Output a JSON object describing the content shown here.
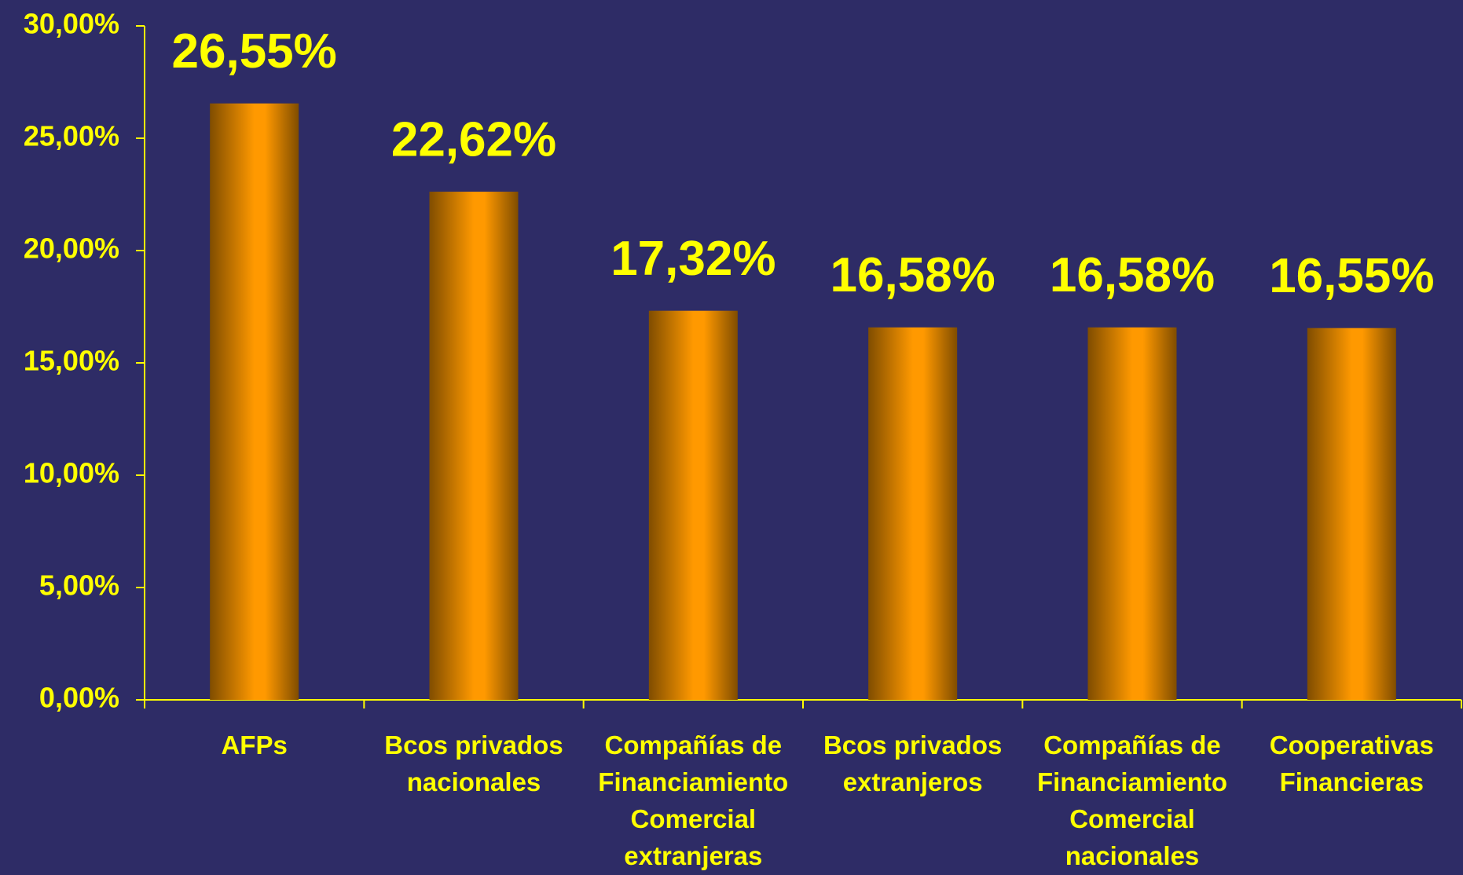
{
  "chart_data": {
    "type": "bar",
    "categories": [
      "AFPs",
      "Bcos privados nacionales",
      "Compañías de Financiamiento Comercial extranjeras",
      "Bcos privados extranjeros",
      "Compañías de Financiamiento Comercial nacionales",
      "Cooperativas Financieras"
    ],
    "values": [
      26.55,
      22.62,
      17.32,
      16.58,
      16.58,
      16.55
    ],
    "value_labels": [
      "26,55%",
      "22,62%",
      "17,32%",
      "16,58%",
      "16,58%",
      "16,55%"
    ],
    "color": "#ff9900",
    "ylim": [
      0,
      30
    ],
    "yticks": [
      {
        "value": 0,
        "label": "0,00%"
      },
      {
        "value": 5,
        "label": "5,00%"
      },
      {
        "value": 10,
        "label": "10,00%"
      },
      {
        "value": 15,
        "label": "15,00%"
      },
      {
        "value": 20,
        "label": "20,00%"
      },
      {
        "value": 25,
        "label": "25,00%"
      },
      {
        "value": 30,
        "label": "30,00%"
      }
    ],
    "grid": false
  }
}
